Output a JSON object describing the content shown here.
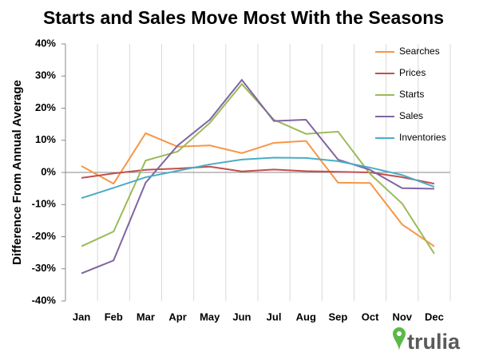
{
  "chart_data": {
    "type": "line",
    "title": "Starts and Sales Move Most With the Seasons",
    "y_label": "Difference From Annual Average",
    "logo": "trulia",
    "categories": [
      "Jan",
      "Feb",
      "Mar",
      "Apr",
      "May",
      "Jun",
      "Jul",
      "Aug",
      "Sep",
      "Oct",
      "Nov",
      "Dec"
    ],
    "series": [
      {
        "name": "Searches",
        "color": "#f79646",
        "values": [
          2,
          -3.5,
          12.2,
          8,
          8.4,
          6,
          9.2,
          9.8,
          -3.2,
          -3.3,
          -16.2,
          -23
        ]
      },
      {
        "name": "Prices",
        "color": "#c0504d",
        "values": [
          -1.7,
          -0.3,
          0.8,
          1.2,
          1.8,
          0.3,
          0.9,
          0.4,
          0.2,
          0,
          -1.5,
          -3.5
        ]
      },
      {
        "name": "Starts",
        "color": "#9bbb59",
        "values": [
          -23,
          -18.4,
          3.7,
          6.5,
          15.4,
          27.5,
          16.4,
          12,
          12.7,
          -0.5,
          -9.7,
          -25.3
        ]
      },
      {
        "name": "Sales",
        "color": "#8064a2",
        "values": [
          -31.4,
          -27.4,
          -3.2,
          8.4,
          16.4,
          28.8,
          16,
          16.4,
          4,
          0.8,
          -4.9,
          -5.1
        ]
      },
      {
        "name": "Inventories",
        "color": "#4bacc6",
        "values": [
          -8,
          -4.8,
          -1.5,
          0.5,
          2.5,
          4,
          4.6,
          4.5,
          3.5,
          1.5,
          -0.8,
          -4.5
        ]
      }
    ],
    "ylim": [
      -40,
      40
    ],
    "yticks": [
      {
        "value": -40,
        "label": "-40%"
      },
      {
        "value": -30,
        "label": "-30%"
      },
      {
        "value": -20,
        "label": "-20%"
      },
      {
        "value": -10,
        "label": "-10%"
      },
      {
        "value": 0,
        "label": "0%"
      },
      {
        "value": 10,
        "label": "10%"
      },
      {
        "value": 20,
        "label": "20%"
      },
      {
        "value": 30,
        "label": "30%"
      },
      {
        "value": 40,
        "label": "40%"
      }
    ],
    "legend": "upper right"
  }
}
